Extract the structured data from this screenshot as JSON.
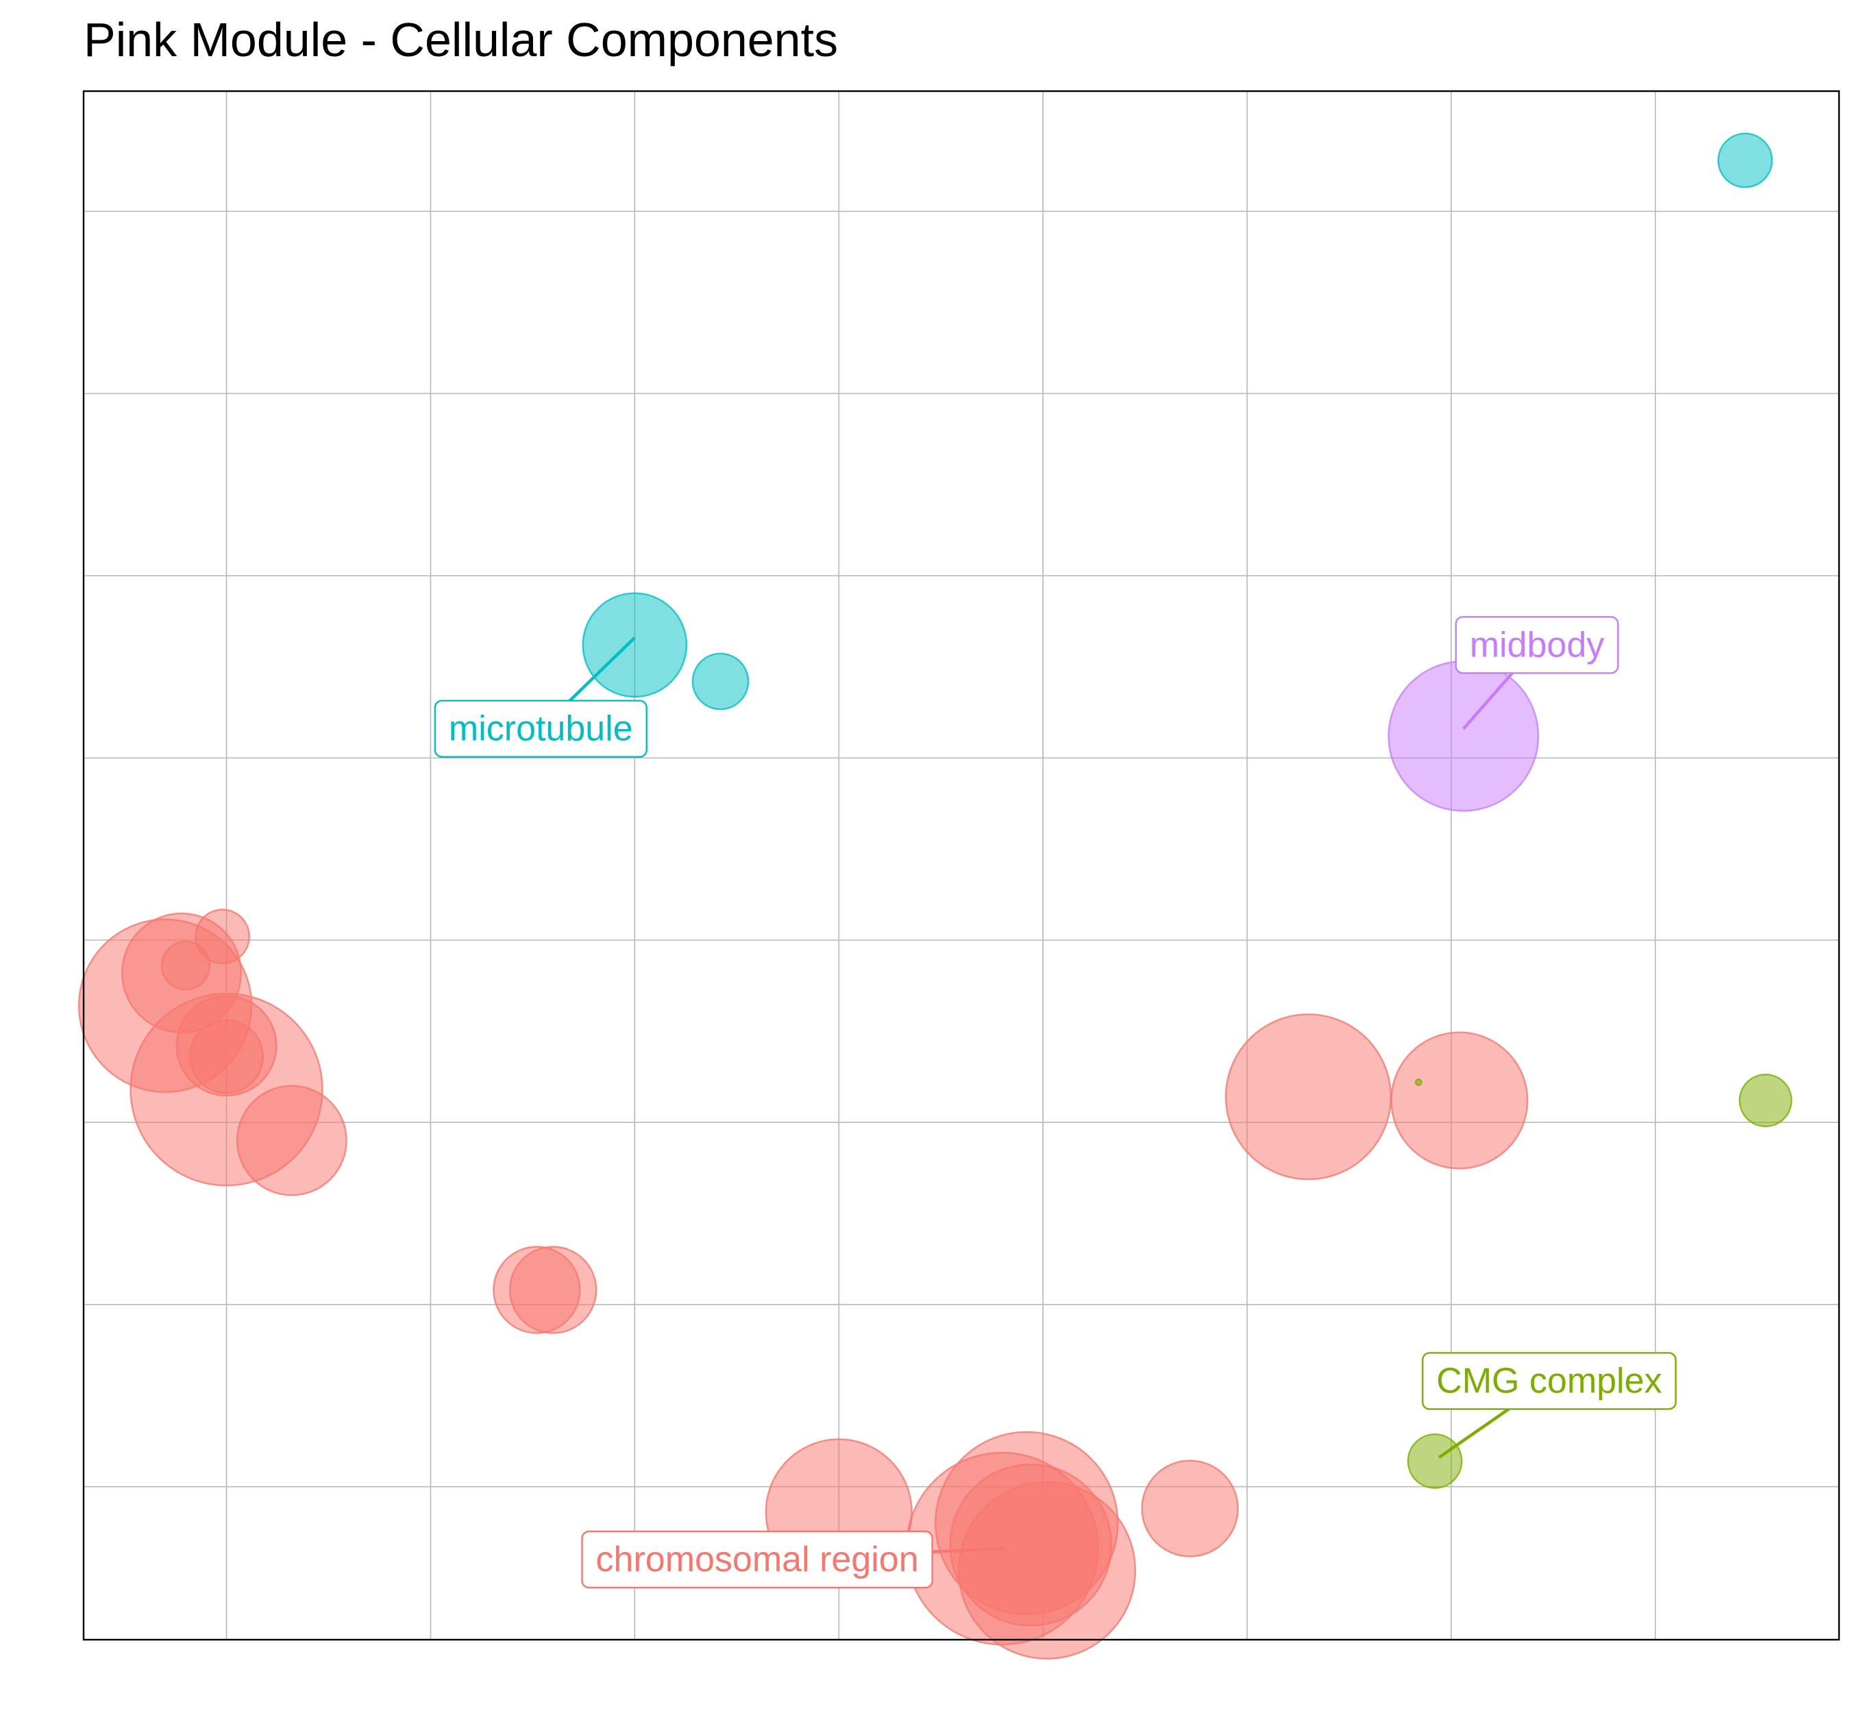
{
  "chart_data": {
    "type": "scatter",
    "title": "Pink Module - Cellular Components",
    "xlabel": "",
    "ylabel": "",
    "xlim": [
      0,
      43
    ],
    "ylim": [
      0,
      42.5
    ],
    "x_grid": [
      3.5,
      8.5,
      13.5,
      18.5,
      23.5,
      28.5,
      33.5,
      38.5
    ],
    "y_grid": [
      4.2,
      9.2,
      14.2,
      19.2,
      24.2,
      29.2,
      34.2,
      39.2
    ],
    "grid": true,
    "legend": "none",
    "colors": {
      "red": "#F8766D",
      "cyan": "#00BFC4",
      "purple": "#C77CFF",
      "green": "#7CAE00"
    },
    "points": [
      {
        "x": 2.0,
        "y": 17.4,
        "size": 0.9,
        "group": "red"
      },
      {
        "x": 2.4,
        "y": 18.3,
        "size": 0.62,
        "group": "red"
      },
      {
        "x": 2.5,
        "y": 18.5,
        "size": 0.25,
        "group": "red"
      },
      {
        "x": 3.4,
        "y": 19.3,
        "size": 0.28,
        "group": "red"
      },
      {
        "x": 3.5,
        "y": 15.1,
        "size": 1.0,
        "group": "red"
      },
      {
        "x": 3.5,
        "y": 16.3,
        "size": 0.52,
        "group": "red"
      },
      {
        "x": 3.5,
        "y": 16.0,
        "size": 0.38,
        "group": "red"
      },
      {
        "x": 5.1,
        "y": 13.7,
        "size": 0.57,
        "group": "red"
      },
      {
        "x": 11.1,
        "y": 9.6,
        "size": 0.45,
        "group": "red"
      },
      {
        "x": 11.5,
        "y": 9.6,
        "size": 0.45,
        "group": "red"
      },
      {
        "x": 18.5,
        "y": 3.5,
        "size": 0.76,
        "group": "red"
      },
      {
        "x": 22.5,
        "y": 2.5,
        "size": 1.0,
        "group": "red"
      },
      {
        "x": 23.1,
        "y": 3.2,
        "size": 0.95,
        "group": "red"
      },
      {
        "x": 23.2,
        "y": 2.6,
        "size": 0.84,
        "group": "red"
      },
      {
        "x": 23.6,
        "y": 1.9,
        "size": 0.92,
        "group": "red"
      },
      {
        "x": 27.1,
        "y": 3.6,
        "size": 0.5,
        "group": "red"
      },
      {
        "x": 30.0,
        "y": 14.9,
        "size": 0.86,
        "group": "red"
      },
      {
        "x": 33.7,
        "y": 14.8,
        "size": 0.71,
        "group": "red"
      },
      {
        "x": 13.5,
        "y": 27.3,
        "size": 0.54,
        "group": "cyan"
      },
      {
        "x": 15.6,
        "y": 26.3,
        "size": 0.29,
        "group": "cyan"
      },
      {
        "x": 40.7,
        "y": 40.6,
        "size": 0.28,
        "group": "cyan"
      },
      {
        "x": 33.8,
        "y": 24.8,
        "size": 0.78,
        "group": "purple"
      },
      {
        "x": 32.7,
        "y": 15.3,
        "size": 0.03,
        "group": "green"
      },
      {
        "x": 41.2,
        "y": 14.8,
        "size": 0.27,
        "group": "green"
      },
      {
        "x": 33.1,
        "y": 4.9,
        "size": 0.28,
        "group": "green"
      }
    ],
    "annotations": [
      {
        "text": "microtubule",
        "group": "cyan",
        "point": [
          13.5,
          27.5
        ],
        "label": [
          11.2,
          25.0
        ]
      },
      {
        "text": "midbody",
        "group": "purple",
        "point": [
          33.8,
          25.0
        ],
        "label": [
          35.6,
          27.3
        ]
      },
      {
        "text": "CMG complex",
        "group": "green",
        "point": [
          33.2,
          5.0
        ],
        "label": [
          35.9,
          7.1
        ]
      },
      {
        "text": "chromosomal region",
        "group": "red",
        "point": [
          22.6,
          2.5
        ],
        "label": [
          16.5,
          2.2
        ]
      }
    ]
  }
}
